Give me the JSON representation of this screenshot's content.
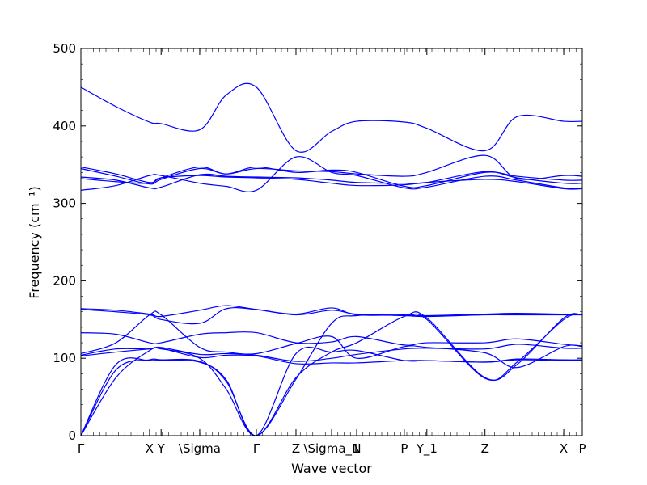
{
  "chart_data": {
    "type": "line",
    "title": "",
    "xlabel": "Wave vector",
    "ylabel": "Frequency (cm⁻¹)",
    "ylim": [
      0,
      500
    ],
    "xlim": [
      0,
      1
    ],
    "grid": false,
    "line_color": "#0000ff",
    "y_ticks": [
      0,
      100,
      200,
      300,
      400,
      500
    ],
    "x_ticks": [
      {
        "label": "Γ",
        "x": 0.0
      },
      {
        "label": "X",
        "x": 0.137
      },
      {
        "label": "Y",
        "x": 0.16
      },
      {
        "label": "\\Sigma",
        "x": 0.237
      },
      {
        "label": "Γ",
        "x": 0.35
      },
      {
        "label": "Z",
        "x": 0.429
      },
      {
        "label": "\\Sigma_1",
        "x": 0.5
      },
      {
        "label": "N",
        "x": 0.55
      },
      {
        "label": "P",
        "x": 0.645
      },
      {
        "label": "Y_1",
        "x": 0.69
      },
      {
        "label": "Z",
        "x": 0.806
      },
      {
        "label": "X",
        "x": 0.963
      },
      {
        "label": "P",
        "x": 1.0
      }
    ],
    "series": [
      {
        "x": [
          0,
          0.07,
          0.137,
          0.16,
          0.237,
          0.29,
          0.35,
          0.429,
          0.5,
          0.55,
          0.645,
          0.69,
          0.806,
          0.87,
          0.963,
          1.0
        ],
        "values": [
          450,
          425,
          405,
          403,
          395,
          440,
          450,
          368,
          393,
          406,
          405,
          397,
          368,
          412,
          406,
          406
        ]
      },
      {
        "x": [
          0,
          0.07,
          0.137,
          0.16,
          0.237,
          0.29,
          0.35,
          0.429,
          0.5,
          0.55,
          0.645,
          0.69,
          0.806,
          0.87,
          0.963,
          1.0
        ],
        "values": [
          347,
          338,
          327,
          333,
          347,
          338,
          347,
          340,
          343,
          340,
          322,
          323,
          340,
          335,
          330,
          330
        ]
      },
      {
        "x": [
          0,
          0.07,
          0.137,
          0.16,
          0.237,
          0.29,
          0.35,
          0.429,
          0.5,
          0.55,
          0.645,
          0.69,
          0.806,
          0.87,
          0.963,
          1.0
        ],
        "values": [
          345,
          335,
          325,
          331,
          345,
          338,
          345,
          342,
          341,
          338,
          335,
          340,
          362,
          332,
          336,
          335
        ]
      },
      {
        "x": [
          0,
          0.07,
          0.137,
          0.16,
          0.237,
          0.29,
          0.35,
          0.429,
          0.5,
          0.55,
          0.645,
          0.69,
          0.806,
          0.87,
          0.963,
          1.0
        ],
        "values": [
          334,
          330,
          320,
          321,
          337,
          335,
          334,
          333,
          330,
          327,
          326,
          327,
          341,
          333,
          326,
          326
        ]
      },
      {
        "x": [
          0,
          0.07,
          0.137,
          0.16,
          0.237,
          0.29,
          0.35,
          0.429,
          0.5,
          0.55,
          0.645,
          0.69,
          0.806,
          0.87,
          0.963,
          1.0
        ],
        "values": [
          332,
          328,
          326,
          333,
          336,
          334,
          333,
          331,
          326,
          323,
          324,
          327,
          331,
          328,
          319,
          319
        ]
      },
      {
        "x": [
          0,
          0.07,
          0.137,
          0.16,
          0.237,
          0.29,
          0.35,
          0.429,
          0.5,
          0.55,
          0.645,
          0.69,
          0.806,
          0.87,
          0.963,
          1.0
        ],
        "values": [
          317,
          323,
          336,
          336,
          326,
          322,
          317,
          360,
          340,
          336,
          320,
          321,
          335,
          330,
          320,
          320
        ]
      },
      {
        "x": [
          0,
          0.07,
          0.137,
          0.16,
          0.237,
          0.29,
          0.35,
          0.429,
          0.5,
          0.55,
          0.645,
          0.69,
          0.806,
          0.87,
          0.963,
          1.0
        ],
        "values": [
          164,
          162,
          157,
          154,
          162,
          168,
          163,
          157,
          165,
          156,
          156,
          155,
          157,
          158,
          157,
          157
        ]
      },
      {
        "x": [
          0,
          0.07,
          0.137,
          0.16,
          0.237,
          0.29,
          0.35,
          0.429,
          0.5,
          0.55,
          0.645,
          0.69,
          0.806,
          0.87,
          0.963,
          1.0
        ],
        "values": [
          163,
          160,
          156,
          150,
          145,
          164,
          163,
          156,
          162,
          157,
          155,
          154,
          156,
          156,
          156,
          156
        ]
      },
      {
        "x": [
          0,
          0.07,
          0.137,
          0.16,
          0.237,
          0.29,
          0.35,
          0.429,
          0.5,
          0.55,
          0.645,
          0.69,
          0.806,
          0.87,
          0.963,
          1.0
        ],
        "values": [
          133,
          131,
          120,
          120,
          131,
          133,
          133,
          120,
          121,
          128,
          117,
          120,
          120,
          125,
          118,
          116
        ]
      },
      {
        "x": [
          0,
          0.07,
          0.137,
          0.16,
          0.237,
          0.29,
          0.35,
          0.429,
          0.5,
          0.55,
          0.645,
          0.69,
          0.806,
          0.87,
          0.963,
          1.0
        ],
        "values": [
          106,
          120,
          156,
          156,
          114,
          108,
          106,
          119,
          128,
          100,
          115,
          114,
          107,
          88,
          115,
          115
        ]
      },
      {
        "x": [
          0,
          0.07,
          0.137,
          0.16,
          0.237,
          0.29,
          0.35,
          0.429,
          0.5,
          0.55,
          0.645,
          0.69,
          0.806,
          0.87,
          0.963,
          1.0
        ],
        "values": [
          104,
          112,
          112,
          114,
          105,
          106,
          104,
          96,
          100,
          105,
          112,
          113,
          112,
          118,
          113,
          113
        ]
      },
      {
        "x": [
          0,
          0.07,
          0.137,
          0.16,
          0.237,
          0.29,
          0.35,
          0.429,
          0.5,
          0.55,
          0.645,
          0.69,
          0.806,
          0.87,
          0.963,
          1.0
        ],
        "values": [
          103,
          108,
          112,
          113,
          101,
          104,
          103,
          93,
          94,
          94,
          97,
          97,
          95,
          99,
          98,
          98
        ]
      },
      {
        "x": [
          0,
          0.07,
          0.137,
          0.16,
          0.237,
          0.29,
          0.35,
          0.429,
          0.5,
          0.55,
          0.645,
          0.69,
          0.806,
          0.87,
          0.963,
          1.0
        ],
        "values": [
          0,
          75,
          110,
          112,
          100,
          60,
          0,
          73,
          145,
          155,
          155,
          150,
          74,
          95,
          150,
          157
        ]
      },
      {
        "x": [
          0,
          0.07,
          0.137,
          0.16,
          0.237,
          0.29,
          0.35,
          0.429,
          0.5,
          0.55,
          0.645,
          0.69,
          0.806,
          0.87,
          0.963,
          1.0
        ],
        "values": [
          0,
          85,
          98,
          98,
          96,
          70,
          0,
          75,
          108,
          120,
          154,
          152,
          75,
          92,
          152,
          156
        ]
      },
      {
        "x": [
          0,
          0.07,
          0.137,
          0.16,
          0.237,
          0.29,
          0.35,
          0.429,
          0.5,
          0.55,
          0.645,
          0.69,
          0.806,
          0.87,
          0.963,
          1.0
        ],
        "values": [
          0,
          92,
          97,
          97,
          95,
          72,
          0,
          106,
          108,
          110,
          97,
          97,
          95,
          98,
          97,
          97
        ]
      }
    ]
  }
}
